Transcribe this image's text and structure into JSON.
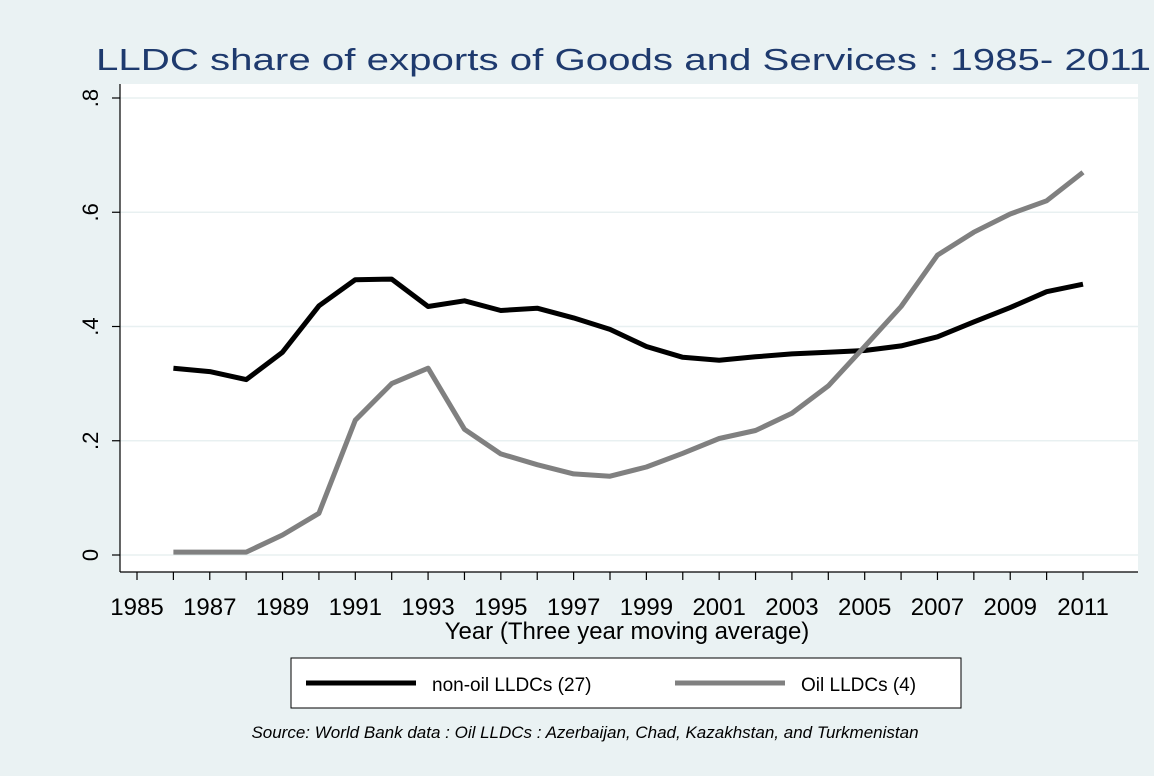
{
  "chart_data": {
    "type": "line",
    "title": "LLDC share of exports of Goods and Services : 1985- 2011",
    "xlabel": "Year (Three year moving average)",
    "ylabel": "",
    "xlim": [
      1985,
      2011
    ],
    "ylim": [
      0,
      0.8
    ],
    "xticks": [
      1985,
      1987,
      1989,
      1991,
      1993,
      1995,
      1997,
      1999,
      2001,
      2003,
      2005,
      2007,
      2009,
      2011
    ],
    "yticks": [
      {
        "value": 0,
        "label": "0"
      },
      {
        "value": 0.2,
        "label": ".2"
      },
      {
        "value": 0.4,
        "label": ".4"
      },
      {
        "value": 0.6,
        "label": ".6"
      },
      {
        "value": 0.8,
        "label": ".8"
      }
    ],
    "grid": true,
    "legend_position": "bottom",
    "x": [
      1986,
      1987,
      1988,
      1989,
      1990,
      1991,
      1992,
      1993,
      1994,
      1995,
      1996,
      1997,
      1998,
      1999,
      2000,
      2001,
      2002,
      2003,
      2004,
      2005,
      2006,
      2007,
      2008,
      2009,
      2010,
      2011
    ],
    "series": [
      {
        "name": "non-oil LLDCs (27)",
        "color": "#000000",
        "values": [
          0.327,
          0.321,
          0.307,
          0.355,
          0.436,
          0.482,
          0.483,
          0.435,
          0.445,
          0.428,
          0.432,
          0.415,
          0.395,
          0.365,
          0.346,
          0.341,
          0.347,
          0.352,
          0.355,
          0.358,
          0.366,
          0.382,
          0.408,
          0.433,
          0.461,
          0.474
        ]
      },
      {
        "name": "Oil LLDCs (4)",
        "color": "#808080",
        "values": [
          0.005,
          0.005,
          0.005,
          0.035,
          0.073,
          0.236,
          0.3,
          0.327,
          0.22,
          0.177,
          0.158,
          0.142,
          0.138,
          0.154,
          0.178,
          0.204,
          0.218,
          0.248,
          0.296,
          0.365,
          0.435,
          0.525,
          0.565,
          0.597,
          0.62,
          0.67
        ]
      }
    ],
    "note": "Source: World Bank data : Oil LLDCs : Azerbaijan, Chad, Kazakhstan, and Turkmenistan"
  }
}
